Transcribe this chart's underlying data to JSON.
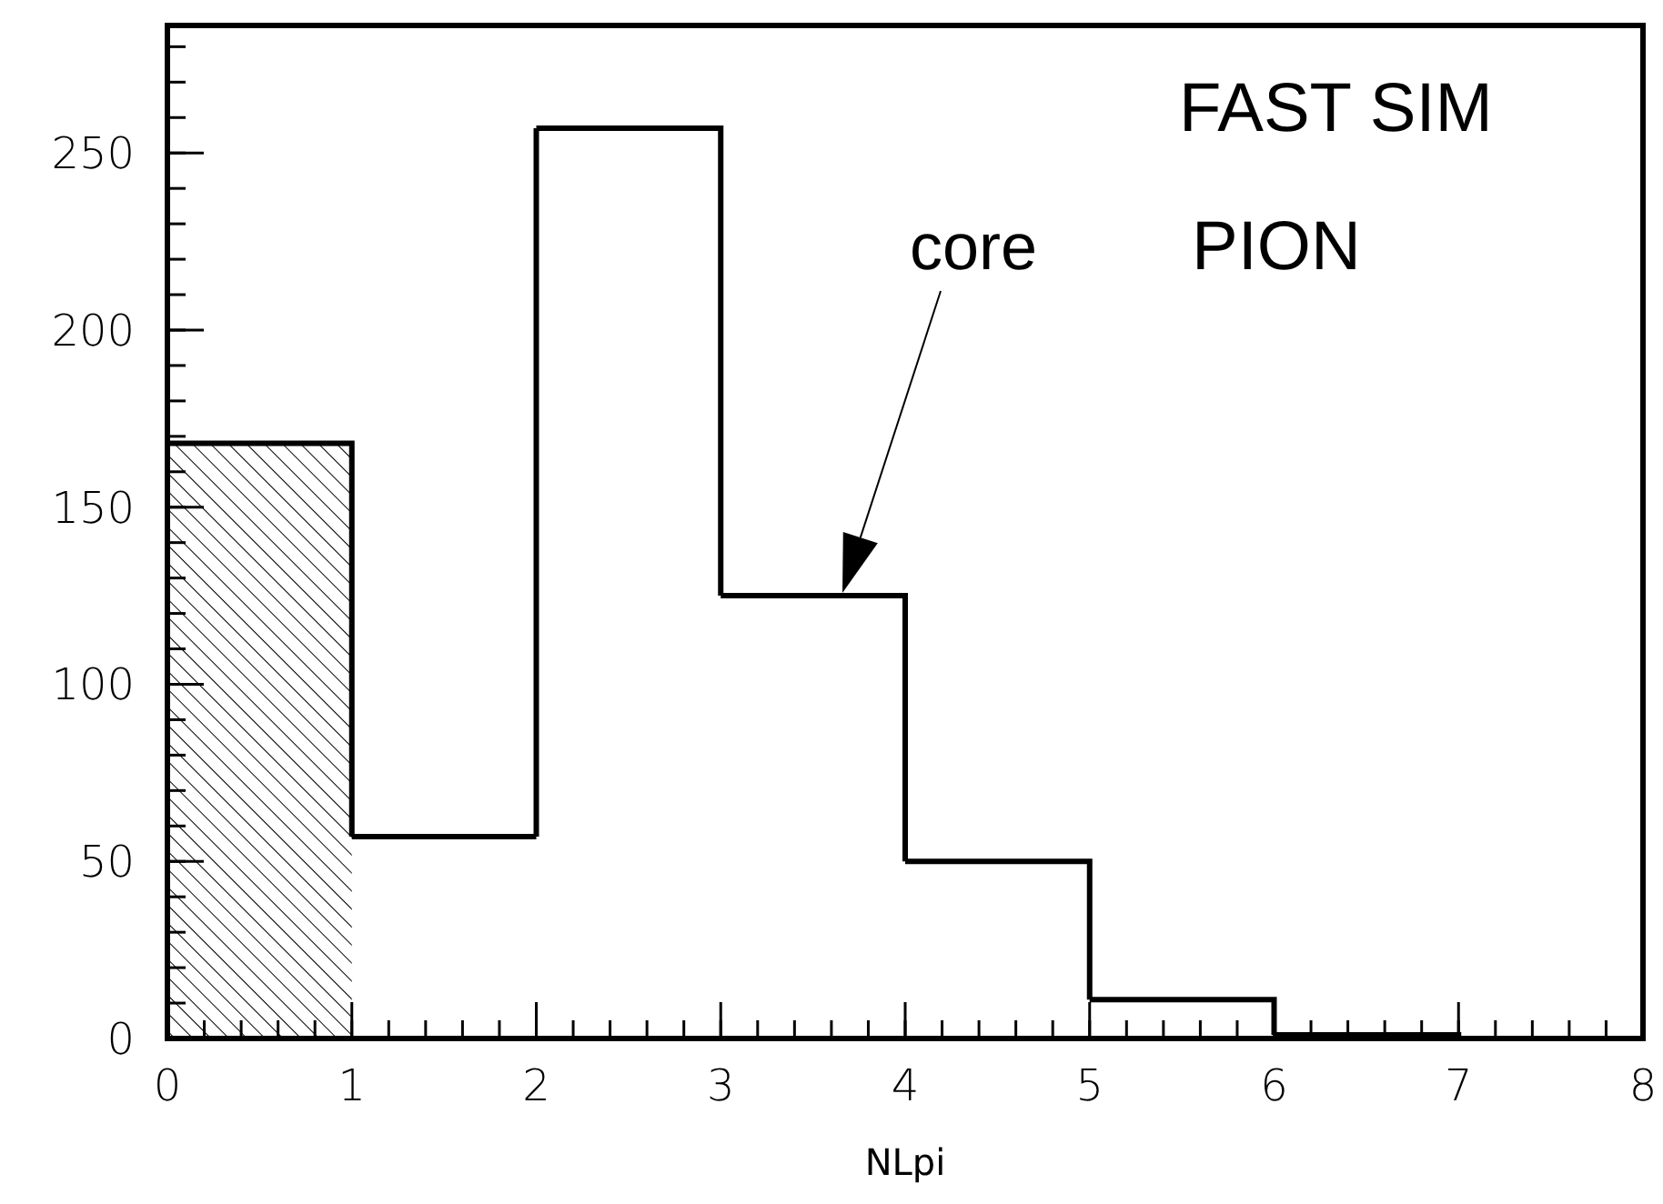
{
  "chart_data": {
    "type": "histogram",
    "xlabel": "NLpi",
    "bins": [
      0,
      1,
      2,
      3,
      4,
      5,
      6,
      7,
      8
    ],
    "series": [
      {
        "color": "#000000",
        "values": [
          null,
          57,
          257,
          125,
          50,
          11,
          1,
          0
        ]
      },
      {
        "color": "#000000",
        "values": [
          168,
          null,
          null,
          null,
          null,
          null,
          null,
          null
        ]
      }
    ],
    "xlim": [
      0,
      8
    ],
    "xticks": [
      0,
      1,
      2,
      3,
      4,
      5,
      6,
      7,
      8
    ],
    "ylim": [
      0,
      286
    ],
    "yticks": [
      0,
      50,
      100,
      150,
      200,
      250
    ],
    "annotations": [
      "FAST SIM",
      "PION",
      "core"
    ]
  }
}
